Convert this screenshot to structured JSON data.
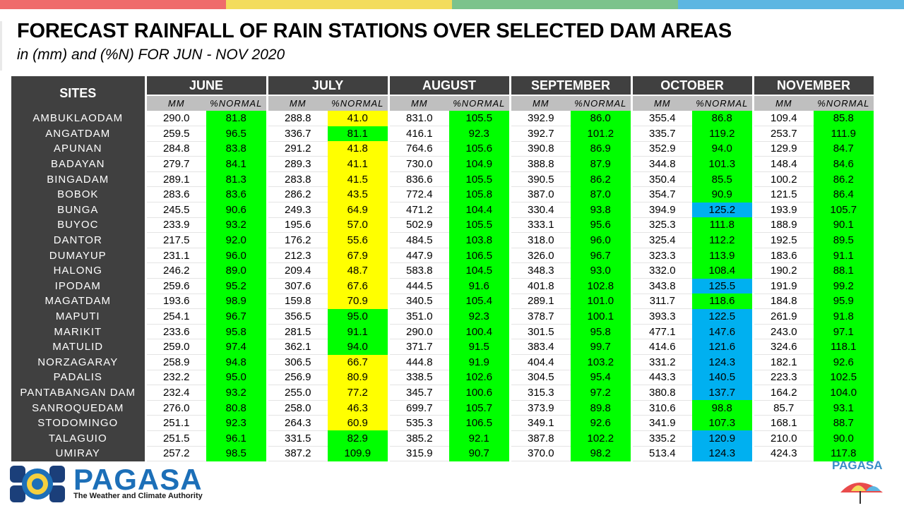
{
  "header": {
    "title": "FORECAST RAINFALL OF RAIN STATIONS OVER SELECTED DAM AREAS",
    "subtitle": "in (mm) and (%N) FOR JUN - NOV 2020"
  },
  "colors": {
    "topbar": [
      "#ef6b6b",
      "#f3dc5c",
      "#7cc38c",
      "#5cb6e2"
    ],
    "header_bg": "#404040",
    "subheader_bg": "#bfbfbf",
    "yellow": "#ffff00",
    "green": "#00ff00",
    "blue": "#00b0f0"
  },
  "table": {
    "sites_header": "SITES",
    "mm_label": "MM",
    "pct_label": "%NORMAL",
    "months": [
      "JUNE",
      "JULY",
      "AUGUST",
      "SEPTEMBER",
      "OCTOBER",
      "NOVEMBER"
    ],
    "rows": [
      {
        "site": "AMBUKLAODAM",
        "cells": [
          {
            "mm": "290.0",
            "pct": "81.8",
            "c": "green"
          },
          {
            "mm": "288.8",
            "pct": "41.0",
            "c": "yellow"
          },
          {
            "mm": "831.0",
            "pct": "105.5",
            "c": "green"
          },
          {
            "mm": "392.9",
            "pct": "86.0",
            "c": "green"
          },
          {
            "mm": "355.4",
            "pct": "86.8",
            "c": "green"
          },
          {
            "mm": "109.4",
            "pct": "85.8",
            "c": "green"
          }
        ]
      },
      {
        "site": "ANGATDAM",
        "cells": [
          {
            "mm": "259.5",
            "pct": "96.5",
            "c": "green"
          },
          {
            "mm": "336.7",
            "pct": "81.1",
            "c": "green"
          },
          {
            "mm": "416.1",
            "pct": "92.3",
            "c": "green"
          },
          {
            "mm": "392.7",
            "pct": "101.2",
            "c": "green"
          },
          {
            "mm": "335.7",
            "pct": "119.2",
            "c": "green"
          },
          {
            "mm": "253.7",
            "pct": "111.9",
            "c": "green"
          }
        ]
      },
      {
        "site": "APUNAN",
        "cells": [
          {
            "mm": "284.8",
            "pct": "83.8",
            "c": "green"
          },
          {
            "mm": "291.2",
            "pct": "41.8",
            "c": "yellow"
          },
          {
            "mm": "764.6",
            "pct": "105.6",
            "c": "green"
          },
          {
            "mm": "390.8",
            "pct": "86.9",
            "c": "green"
          },
          {
            "mm": "352.9",
            "pct": "94.0",
            "c": "green"
          },
          {
            "mm": "129.9",
            "pct": "84.7",
            "c": "green"
          }
        ]
      },
      {
        "site": "BADAYAN",
        "cells": [
          {
            "mm": "279.7",
            "pct": "84.1",
            "c": "green"
          },
          {
            "mm": "289.3",
            "pct": "41.1",
            "c": "yellow"
          },
          {
            "mm": "730.0",
            "pct": "104.9",
            "c": "green"
          },
          {
            "mm": "388.8",
            "pct": "87.9",
            "c": "green"
          },
          {
            "mm": "344.8",
            "pct": "101.3",
            "c": "green"
          },
          {
            "mm": "148.4",
            "pct": "84.6",
            "c": "green"
          }
        ]
      },
      {
        "site": "BINGADAM",
        "cells": [
          {
            "mm": "289.1",
            "pct": "81.3",
            "c": "green"
          },
          {
            "mm": "283.8",
            "pct": "41.5",
            "c": "yellow"
          },
          {
            "mm": "836.6",
            "pct": "105.5",
            "c": "green"
          },
          {
            "mm": "390.5",
            "pct": "86.2",
            "c": "green"
          },
          {
            "mm": "350.4",
            "pct": "85.5",
            "c": "green"
          },
          {
            "mm": "100.2",
            "pct": "86.2",
            "c": "green"
          }
        ]
      },
      {
        "site": "BOBOK",
        "cells": [
          {
            "mm": "283.6",
            "pct": "83.6",
            "c": "green"
          },
          {
            "mm": "286.2",
            "pct": "43.5",
            "c": "yellow"
          },
          {
            "mm": "772.4",
            "pct": "105.8",
            "c": "green"
          },
          {
            "mm": "387.0",
            "pct": "87.0",
            "c": "green"
          },
          {
            "mm": "354.7",
            "pct": "90.9",
            "c": "green"
          },
          {
            "mm": "121.5",
            "pct": "86.4",
            "c": "green"
          }
        ]
      },
      {
        "site": "BUNGA",
        "cells": [
          {
            "mm": "245.5",
            "pct": "90.6",
            "c": "green"
          },
          {
            "mm": "249.3",
            "pct": "64.9",
            "c": "yellow"
          },
          {
            "mm": "471.2",
            "pct": "104.4",
            "c": "green"
          },
          {
            "mm": "330.4",
            "pct": "93.8",
            "c": "green"
          },
          {
            "mm": "394.9",
            "pct": "125.2",
            "c": "blue"
          },
          {
            "mm": "193.9",
            "pct": "105.7",
            "c": "green"
          }
        ]
      },
      {
        "site": "BUYOC",
        "cells": [
          {
            "mm": "233.9",
            "pct": "93.2",
            "c": "green"
          },
          {
            "mm": "195.6",
            "pct": "57.0",
            "c": "yellow"
          },
          {
            "mm": "502.9",
            "pct": "105.5",
            "c": "green"
          },
          {
            "mm": "333.1",
            "pct": "95.6",
            "c": "green"
          },
          {
            "mm": "325.3",
            "pct": "111.8",
            "c": "green"
          },
          {
            "mm": "188.9",
            "pct": "90.1",
            "c": "green"
          }
        ]
      },
      {
        "site": "DANTOR",
        "cells": [
          {
            "mm": "217.5",
            "pct": "92.0",
            "c": "green"
          },
          {
            "mm": "176.2",
            "pct": "55.6",
            "c": "yellow"
          },
          {
            "mm": "484.5",
            "pct": "103.8",
            "c": "green"
          },
          {
            "mm": "318.0",
            "pct": "96.0",
            "c": "green"
          },
          {
            "mm": "325.4",
            "pct": "112.2",
            "c": "green"
          },
          {
            "mm": "192.5",
            "pct": "89.5",
            "c": "green"
          }
        ]
      },
      {
        "site": "DUMAYUP",
        "cells": [
          {
            "mm": "231.1",
            "pct": "96.0",
            "c": "green"
          },
          {
            "mm": "212.3",
            "pct": "67.9",
            "c": "yellow"
          },
          {
            "mm": "447.9",
            "pct": "106.5",
            "c": "green"
          },
          {
            "mm": "326.0",
            "pct": "96.7",
            "c": "green"
          },
          {
            "mm": "323.3",
            "pct": "113.9",
            "c": "green"
          },
          {
            "mm": "183.6",
            "pct": "91.1",
            "c": "green"
          }
        ]
      },
      {
        "site": "HALONG",
        "cells": [
          {
            "mm": "246.2",
            "pct": "89.0",
            "c": "green"
          },
          {
            "mm": "209.4",
            "pct": "48.7",
            "c": "yellow"
          },
          {
            "mm": "583.8",
            "pct": "104.5",
            "c": "green"
          },
          {
            "mm": "348.3",
            "pct": "93.0",
            "c": "green"
          },
          {
            "mm": "332.0",
            "pct": "108.4",
            "c": "green"
          },
          {
            "mm": "190.2",
            "pct": "88.1",
            "c": "green"
          }
        ]
      },
      {
        "site": "IPODAM",
        "cells": [
          {
            "mm": "259.6",
            "pct": "95.2",
            "c": "green"
          },
          {
            "mm": "307.6",
            "pct": "67.6",
            "c": "yellow"
          },
          {
            "mm": "444.5",
            "pct": "91.6",
            "c": "green"
          },
          {
            "mm": "401.8",
            "pct": "102.8",
            "c": "green"
          },
          {
            "mm": "343.8",
            "pct": "125.5",
            "c": "blue"
          },
          {
            "mm": "191.9",
            "pct": "99.2",
            "c": "green"
          }
        ]
      },
      {
        "site": "MAGATDAM",
        "cells": [
          {
            "mm": "193.6",
            "pct": "98.9",
            "c": "green"
          },
          {
            "mm": "159.8",
            "pct": "70.9",
            "c": "yellow"
          },
          {
            "mm": "340.5",
            "pct": "105.4",
            "c": "green"
          },
          {
            "mm": "289.1",
            "pct": "101.0",
            "c": "green"
          },
          {
            "mm": "311.7",
            "pct": "118.6",
            "c": "green"
          },
          {
            "mm": "184.8",
            "pct": "95.9",
            "c": "green"
          }
        ]
      },
      {
        "site": "MAPUTI",
        "cells": [
          {
            "mm": "254.1",
            "pct": "96.7",
            "c": "green"
          },
          {
            "mm": "356.5",
            "pct": "95.0",
            "c": "green"
          },
          {
            "mm": "351.0",
            "pct": "92.3",
            "c": "green"
          },
          {
            "mm": "378.7",
            "pct": "100.1",
            "c": "green"
          },
          {
            "mm": "393.3",
            "pct": "122.5",
            "c": "blue"
          },
          {
            "mm": "261.9",
            "pct": "91.8",
            "c": "green"
          }
        ]
      },
      {
        "site": "MARIKIT",
        "cells": [
          {
            "mm": "233.6",
            "pct": "95.8",
            "c": "green"
          },
          {
            "mm": "281.5",
            "pct": "91.1",
            "c": "green"
          },
          {
            "mm": "290.0",
            "pct": "100.4",
            "c": "green"
          },
          {
            "mm": "301.5",
            "pct": "95.8",
            "c": "green"
          },
          {
            "mm": "477.1",
            "pct": "147.6",
            "c": "blue"
          },
          {
            "mm": "243.0",
            "pct": "97.1",
            "c": "green"
          }
        ]
      },
      {
        "site": "MATULID",
        "cells": [
          {
            "mm": "259.0",
            "pct": "97.4",
            "c": "green"
          },
          {
            "mm": "362.1",
            "pct": "94.0",
            "c": "green"
          },
          {
            "mm": "371.7",
            "pct": "91.5",
            "c": "green"
          },
          {
            "mm": "383.4",
            "pct": "99.7",
            "c": "green"
          },
          {
            "mm": "414.6",
            "pct": "121.6",
            "c": "blue"
          },
          {
            "mm": "324.6",
            "pct": "118.1",
            "c": "green"
          }
        ]
      },
      {
        "site": "NORZAGARAY",
        "cells": [
          {
            "mm": "258.9",
            "pct": "94.8",
            "c": "green"
          },
          {
            "mm": "306.5",
            "pct": "66.7",
            "c": "yellow"
          },
          {
            "mm": "444.8",
            "pct": "91.9",
            "c": "green"
          },
          {
            "mm": "404.4",
            "pct": "103.2",
            "c": "green"
          },
          {
            "mm": "331.2",
            "pct": "124.3",
            "c": "blue"
          },
          {
            "mm": "182.1",
            "pct": "92.6",
            "c": "green"
          }
        ]
      },
      {
        "site": "PADALIS",
        "cells": [
          {
            "mm": "232.2",
            "pct": "95.0",
            "c": "green"
          },
          {
            "mm": "256.9",
            "pct": "80.9",
            "c": "yellow"
          },
          {
            "mm": "338.5",
            "pct": "102.6",
            "c": "green"
          },
          {
            "mm": "304.5",
            "pct": "95.4",
            "c": "green"
          },
          {
            "mm": "443.3",
            "pct": "140.5",
            "c": "blue"
          },
          {
            "mm": "223.3",
            "pct": "102.5",
            "c": "green"
          }
        ]
      },
      {
        "site": "PANTABANGAN DAM",
        "cells": [
          {
            "mm": "232.4",
            "pct": "93.2",
            "c": "green"
          },
          {
            "mm": "255.0",
            "pct": "77.2",
            "c": "yellow"
          },
          {
            "mm": "345.7",
            "pct": "100.6",
            "c": "green"
          },
          {
            "mm": "315.3",
            "pct": "97.2",
            "c": "green"
          },
          {
            "mm": "380.8",
            "pct": "137.7",
            "c": "blue"
          },
          {
            "mm": "164.2",
            "pct": "104.0",
            "c": "green"
          }
        ]
      },
      {
        "site": "SANROQUEDAM",
        "cells": [
          {
            "mm": "276.0",
            "pct": "80.8",
            "c": "green"
          },
          {
            "mm": "258.0",
            "pct": "46.3",
            "c": "yellow"
          },
          {
            "mm": "699.7",
            "pct": "105.7",
            "c": "green"
          },
          {
            "mm": "373.9",
            "pct": "89.8",
            "c": "green"
          },
          {
            "mm": "310.6",
            "pct": "98.8",
            "c": "green"
          },
          {
            "mm": "85.7",
            "pct": "93.1",
            "c": "green"
          }
        ]
      },
      {
        "site": "STODOMINGO",
        "cells": [
          {
            "mm": "251.1",
            "pct": "92.3",
            "c": "green"
          },
          {
            "mm": "264.3",
            "pct": "60.9",
            "c": "yellow"
          },
          {
            "mm": "535.3",
            "pct": "106.5",
            "c": "green"
          },
          {
            "mm": "349.1",
            "pct": "92.6",
            "c": "green"
          },
          {
            "mm": "341.9",
            "pct": "107.3",
            "c": "green"
          },
          {
            "mm": "168.1",
            "pct": "88.7",
            "c": "green"
          }
        ]
      },
      {
        "site": "TALAGUIO",
        "cells": [
          {
            "mm": "251.5",
            "pct": "96.1",
            "c": "green"
          },
          {
            "mm": "331.5",
            "pct": "82.9",
            "c": "green"
          },
          {
            "mm": "385.2",
            "pct": "92.1",
            "c": "green"
          },
          {
            "mm": "387.8",
            "pct": "102.2",
            "c": "green"
          },
          {
            "mm": "335.2",
            "pct": "120.9",
            "c": "blue"
          },
          {
            "mm": "210.0",
            "pct": "90.0",
            "c": "green"
          }
        ]
      },
      {
        "site": "UMIRAY",
        "cells": [
          {
            "mm": "257.2",
            "pct": "98.5",
            "c": "green"
          },
          {
            "mm": "387.2",
            "pct": "109.9",
            "c": "green"
          },
          {
            "mm": "315.9",
            "pct": "90.7",
            "c": "green"
          },
          {
            "mm": "370.0",
            "pct": "98.2",
            "c": "green"
          },
          {
            "mm": "513.4",
            "pct": "124.3",
            "c": "blue"
          },
          {
            "mm": "424.3",
            "pct": "117.8",
            "c": "green"
          }
        ]
      }
    ]
  },
  "footer": {
    "logo_text": "PAGASA",
    "logo_tagline": "The Weather and Climate Authority",
    "logo_icon": "pagasa-seal-icon",
    "corner_text": "PAGASA",
    "corner_icon": "umbrella-icon"
  }
}
